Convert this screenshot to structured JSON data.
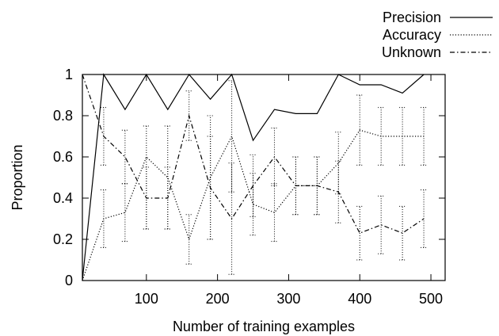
{
  "chart_data": {
    "type": "line",
    "title": "",
    "xlabel": "Number of training examples",
    "ylabel": "Proportion",
    "xlim": [
      10,
      520
    ],
    "ylim": [
      0,
      1
    ],
    "xticks": [
      100,
      200,
      300,
      400,
      500
    ],
    "yticks": [
      0,
      0.2,
      0.4,
      0.6,
      0.8,
      1
    ],
    "xtick_labels": [
      "100",
      "200",
      "300",
      "400",
      "500"
    ],
    "ytick_labels": [
      "0",
      "0.2",
      "0.4",
      "0.6",
      "0.8",
      "1"
    ],
    "grid": false,
    "legend_position": "top-right",
    "series": [
      {
        "name": "Precision",
        "style": "solid",
        "x": [
          10,
          40,
          70,
          100,
          130,
          160,
          190,
          220,
          250,
          280,
          310,
          340,
          370,
          400,
          430,
          460,
          490
        ],
        "y": [
          0.0,
          1.0,
          0.83,
          1.0,
          0.83,
          1.0,
          0.88,
          1.0,
          0.68,
          0.83,
          0.81,
          0.81,
          1.0,
          0.95,
          0.95,
          0.91,
          1.0
        ],
        "error_bars": null
      },
      {
        "name": "Accuracy",
        "style": "dotted",
        "x": [
          10,
          40,
          70,
          100,
          130,
          160,
          190,
          220,
          250,
          280,
          310,
          340,
          370,
          400,
          430,
          460,
          490
        ],
        "y": [
          0.0,
          0.3,
          0.33,
          0.6,
          0.5,
          0.2,
          0.5,
          0.7,
          0.37,
          0.33,
          0.46,
          0.46,
          0.57,
          0.73,
          0.7,
          0.7,
          0.7
        ],
        "error_bars": {
          "x": [
            40,
            70,
            100,
            130,
            160,
            190,
            220,
            250,
            280,
            310,
            340,
            370,
            400,
            430,
            460,
            490
          ],
          "low": [
            0.16,
            0.19,
            0.25,
            0.25,
            0.08,
            0.2,
            0.43,
            0.22,
            0.19,
            0.32,
            0.32,
            0.42,
            0.56,
            0.56,
            0.56,
            0.56
          ],
          "high": [
            0.44,
            0.47,
            0.75,
            0.75,
            0.32,
            0.8,
            0.97,
            0.52,
            0.47,
            0.6,
            0.6,
            0.72,
            0.9,
            0.84,
            0.84,
            0.84
          ]
        }
      },
      {
        "name": "Unknown",
        "style": "dashdot",
        "x": [
          10,
          40,
          70,
          100,
          130,
          160,
          190,
          220,
          250,
          280,
          310,
          340,
          370,
          400,
          430,
          460,
          490
        ],
        "y": [
          1.0,
          0.7,
          0.6,
          0.4,
          0.4,
          0.8,
          0.45,
          0.3,
          0.46,
          0.6,
          0.46,
          0.46,
          0.43,
          0.23,
          0.27,
          0.23,
          0.3
        ],
        "error_bars": {
          "x": [
            40,
            70,
            100,
            130,
            160,
            190,
            220,
            250,
            280,
            310,
            340,
            370,
            400,
            430,
            460,
            490
          ],
          "low": [
            0.56,
            0.47,
            0.25,
            0.25,
            0.68,
            0.2,
            0.03,
            0.31,
            0.46,
            0.32,
            0.32,
            0.28,
            0.1,
            0.13,
            0.1,
            0.16
          ],
          "high": [
            0.84,
            0.73,
            0.55,
            0.55,
            0.92,
            0.7,
            0.57,
            0.61,
            0.74,
            0.6,
            0.6,
            0.58,
            0.36,
            0.41,
            0.36,
            0.44
          ]
        }
      }
    ]
  }
}
